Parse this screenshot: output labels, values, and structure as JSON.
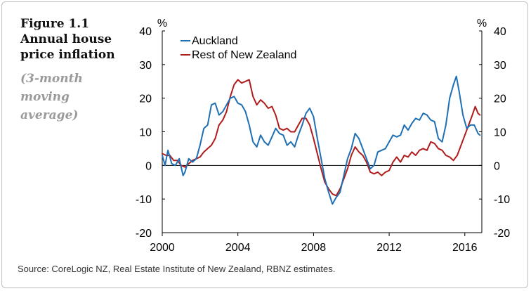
{
  "figure": {
    "number": "Figure 1.1",
    "title": "Annual house price inflation",
    "subtitle": "(3-month moving average)",
    "source": "Source:   CoreLogic NZ, Real Estate Institute of New Zealand, RBNZ estimates."
  },
  "colors": {
    "auckland": "#1f6fb4",
    "rest_nz": "#b01c1c",
    "axis": "#000000",
    "zero_line": "#000000"
  },
  "chart_data": {
    "type": "line",
    "title": "Annual house price inflation",
    "subtitle": "(3-month moving average)",
    "ylabel_left": "%",
    "ylabel_right": "%",
    "xlim": [
      2000,
      2016.9
    ],
    "ylim": [
      -20,
      40
    ],
    "x_ticks": [
      2000,
      2004,
      2008,
      2012,
      2016
    ],
    "y_ticks": [
      -20,
      -10,
      0,
      10,
      20,
      30,
      40
    ],
    "grid": false,
    "legend_position": "top-left",
    "series": [
      {
        "name": "Auckland",
        "color": "#1f6fb4",
        "points": [
          [
            2000.0,
            3.0
          ],
          [
            2000.15,
            0.0
          ],
          [
            2000.3,
            4.5
          ],
          [
            2000.5,
            0.5
          ],
          [
            2000.7,
            0.0
          ],
          [
            2000.9,
            2.0
          ],
          [
            2001.0,
            -0.5
          ],
          [
            2001.1,
            -3.0
          ],
          [
            2001.2,
            -2.0
          ],
          [
            2001.4,
            2.0
          ],
          [
            2001.6,
            1.0
          ],
          [
            2001.8,
            2.0
          ],
          [
            2002.0,
            6.0
          ],
          [
            2002.2,
            11.0
          ],
          [
            2002.4,
            12.0
          ],
          [
            2002.6,
            18.0
          ],
          [
            2002.8,
            18.5
          ],
          [
            2003.0,
            15.0
          ],
          [
            2003.2,
            16.0
          ],
          [
            2003.4,
            18.0
          ],
          [
            2003.6,
            20.0
          ],
          [
            2003.8,
            20.5
          ],
          [
            2004.0,
            18.5
          ],
          [
            2004.2,
            18.0
          ],
          [
            2004.4,
            16.0
          ],
          [
            2004.6,
            12.0
          ],
          [
            2004.8,
            7.0
          ],
          [
            2005.0,
            5.5
          ],
          [
            2005.2,
            9.0
          ],
          [
            2005.4,
            7.0
          ],
          [
            2005.6,
            6.0
          ],
          [
            2005.8,
            8.5
          ],
          [
            2006.0,
            11.0
          ],
          [
            2006.2,
            9.5
          ],
          [
            2006.4,
            9.0
          ],
          [
            2006.6,
            6.0
          ],
          [
            2006.8,
            7.0
          ],
          [
            2007.0,
            5.5
          ],
          [
            2007.2,
            9.0
          ],
          [
            2007.4,
            12.0
          ],
          [
            2007.6,
            15.5
          ],
          [
            2007.8,
            17.0
          ],
          [
            2008.0,
            14.5
          ],
          [
            2008.2,
            8.0
          ],
          [
            2008.4,
            2.0
          ],
          [
            2008.6,
            -4.0
          ],
          [
            2008.8,
            -8.0
          ],
          [
            2009.0,
            -11.5
          ],
          [
            2009.2,
            -9.5
          ],
          [
            2009.4,
            -8.0
          ],
          [
            2009.6,
            -3.0
          ],
          [
            2009.8,
            2.0
          ],
          [
            2010.0,
            5.0
          ],
          [
            2010.2,
            9.5
          ],
          [
            2010.4,
            8.0
          ],
          [
            2010.6,
            5.0
          ],
          [
            2010.8,
            2.0
          ],
          [
            2011.0,
            -1.0
          ],
          [
            2011.2,
            0.0
          ],
          [
            2011.4,
            4.0
          ],
          [
            2011.6,
            4.5
          ],
          [
            2011.8,
            5.0
          ],
          [
            2012.0,
            7.0
          ],
          [
            2012.2,
            9.0
          ],
          [
            2012.4,
            8.5
          ],
          [
            2012.6,
            9.0
          ],
          [
            2012.8,
            12.0
          ],
          [
            2013.0,
            10.5
          ],
          [
            2013.2,
            12.5
          ],
          [
            2013.4,
            14.0
          ],
          [
            2013.6,
            13.5
          ],
          [
            2013.8,
            15.5
          ],
          [
            2014.0,
            15.0
          ],
          [
            2014.2,
            13.5
          ],
          [
            2014.4,
            13.0
          ],
          [
            2014.6,
            8.0
          ],
          [
            2014.8,
            7.0
          ],
          [
            2015.0,
            12.0
          ],
          [
            2015.2,
            20.0
          ],
          [
            2015.4,
            24.0
          ],
          [
            2015.55,
            26.5
          ],
          [
            2015.7,
            22.0
          ],
          [
            2015.9,
            15.0
          ],
          [
            2016.1,
            11.0
          ],
          [
            2016.3,
            12.0
          ],
          [
            2016.5,
            12.0
          ],
          [
            2016.7,
            9.5
          ],
          [
            2016.8,
            9.0
          ]
        ]
      },
      {
        "name": "Rest of New Zealand",
        "color": "#b01c1c",
        "points": [
          [
            2000.0,
            3.5
          ],
          [
            2000.2,
            3.0
          ],
          [
            2000.4,
            3.0
          ],
          [
            2000.6,
            1.5
          ],
          [
            2000.8,
            1.5
          ],
          [
            2001.0,
            0.0
          ],
          [
            2001.2,
            -0.5
          ],
          [
            2001.4,
            0.5
          ],
          [
            2001.6,
            1.5
          ],
          [
            2001.8,
            2.0
          ],
          [
            2002.0,
            2.5
          ],
          [
            2002.2,
            4.0
          ],
          [
            2002.4,
            5.0
          ],
          [
            2002.6,
            6.0
          ],
          [
            2002.8,
            8.0
          ],
          [
            2003.0,
            12.0
          ],
          [
            2003.2,
            13.5
          ],
          [
            2003.4,
            16.0
          ],
          [
            2003.6,
            20.5
          ],
          [
            2003.8,
            24.0
          ],
          [
            2004.0,
            25.5
          ],
          [
            2004.2,
            24.5
          ],
          [
            2004.4,
            25.0
          ],
          [
            2004.6,
            25.5
          ],
          [
            2004.8,
            20.5
          ],
          [
            2005.0,
            18.0
          ],
          [
            2005.2,
            19.5
          ],
          [
            2005.4,
            18.5
          ],
          [
            2005.6,
            17.0
          ],
          [
            2005.8,
            17.5
          ],
          [
            2006.0,
            15.0
          ],
          [
            2006.2,
            11.0
          ],
          [
            2006.4,
            10.5
          ],
          [
            2006.6,
            11.0
          ],
          [
            2006.8,
            10.0
          ],
          [
            2007.0,
            10.0
          ],
          [
            2007.2,
            12.0
          ],
          [
            2007.4,
            14.0
          ],
          [
            2007.6,
            14.0
          ],
          [
            2007.8,
            12.0
          ],
          [
            2008.0,
            8.0
          ],
          [
            2008.2,
            3.5
          ],
          [
            2008.4,
            -1.0
          ],
          [
            2008.6,
            -5.0
          ],
          [
            2008.8,
            -7.0
          ],
          [
            2009.0,
            -8.5
          ],
          [
            2009.2,
            -9.0
          ],
          [
            2009.4,
            -7.0
          ],
          [
            2009.6,
            -4.0
          ],
          [
            2009.8,
            -1.0
          ],
          [
            2010.0,
            3.0
          ],
          [
            2010.2,
            5.5
          ],
          [
            2010.4,
            4.0
          ],
          [
            2010.6,
            3.0
          ],
          [
            2010.8,
            1.0
          ],
          [
            2011.0,
            -2.0
          ],
          [
            2011.2,
            -2.5
          ],
          [
            2011.4,
            -2.0
          ],
          [
            2011.6,
            -3.0
          ],
          [
            2011.8,
            -2.0
          ],
          [
            2012.0,
            -1.5
          ],
          [
            2012.2,
            1.0
          ],
          [
            2012.4,
            2.5
          ],
          [
            2012.6,
            1.0
          ],
          [
            2012.8,
            3.0
          ],
          [
            2013.0,
            2.5
          ],
          [
            2013.2,
            4.0
          ],
          [
            2013.4,
            3.0
          ],
          [
            2013.6,
            4.5
          ],
          [
            2013.8,
            5.0
          ],
          [
            2014.0,
            4.5
          ],
          [
            2014.2,
            7.0
          ],
          [
            2014.4,
            6.5
          ],
          [
            2014.6,
            5.0
          ],
          [
            2014.8,
            4.5
          ],
          [
            2015.0,
            3.0
          ],
          [
            2015.2,
            2.5
          ],
          [
            2015.4,
            1.5
          ],
          [
            2015.6,
            3.0
          ],
          [
            2015.8,
            6.0
          ],
          [
            2016.0,
            9.0
          ],
          [
            2016.2,
            12.0
          ],
          [
            2016.4,
            15.0
          ],
          [
            2016.55,
            17.5
          ],
          [
            2016.7,
            15.5
          ],
          [
            2016.8,
            15.0
          ]
        ]
      }
    ]
  }
}
